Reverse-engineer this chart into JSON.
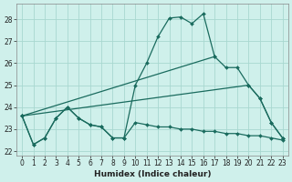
{
  "xlabel": "Humidex (Indice chaleur)",
  "bg_color": "#cff0eb",
  "grid_color": "#a8d8d0",
  "line_color": "#1a6b5e",
  "xlim": [
    -0.5,
    23.5
  ],
  "ylim": [
    21.8,
    28.7
  ],
  "yticks": [
    22,
    23,
    24,
    25,
    26,
    27,
    28
  ],
  "xticks": [
    0,
    1,
    2,
    3,
    4,
    5,
    6,
    7,
    8,
    9,
    10,
    11,
    12,
    13,
    14,
    15,
    16,
    17,
    18,
    19,
    20,
    21,
    22,
    23
  ],
  "series": [
    {
      "x": [
        0,
        1,
        2,
        3,
        4,
        5,
        6,
        7,
        8,
        9,
        10,
        11,
        12,
        13,
        14,
        15,
        16,
        17
      ],
      "y": [
        23.6,
        22.3,
        22.6,
        23.5,
        24.0,
        23.5,
        23.2,
        23.1,
        22.6,
        22.6,
        25.0,
        26.0,
        27.2,
        28.05,
        28.1,
        27.8,
        28.25,
        26.3
      ]
    },
    {
      "x": [
        0,
        17,
        18,
        19,
        20,
        21,
        22,
        23
      ],
      "y": [
        23.6,
        26.3,
        25.8,
        25.8,
        25.0,
        24.4,
        23.3,
        22.6
      ]
    },
    {
      "comment": "Lower diagonal line: from 0 to 20(25.0) 21(24.4) 22(23.3) 23(22.6)",
      "x": [
        0,
        20,
        21,
        22,
        23
      ],
      "y": [
        23.6,
        25.0,
        24.4,
        23.3,
        22.6
      ]
    },
    {
      "x": [
        0,
        1,
        2,
        3,
        4,
        5,
        6,
        7,
        8,
        9,
        10,
        11,
        12,
        13,
        14,
        15,
        16,
        17,
        18,
        19,
        20,
        21,
        22,
        23
      ],
      "y": [
        23.6,
        22.3,
        22.6,
        23.5,
        24.0,
        23.5,
        23.2,
        23.1,
        22.6,
        22.6,
        23.3,
        23.2,
        23.1,
        23.1,
        23.0,
        23.0,
        22.9,
        22.9,
        22.8,
        22.8,
        22.7,
        22.7,
        22.6,
        22.5
      ]
    }
  ]
}
